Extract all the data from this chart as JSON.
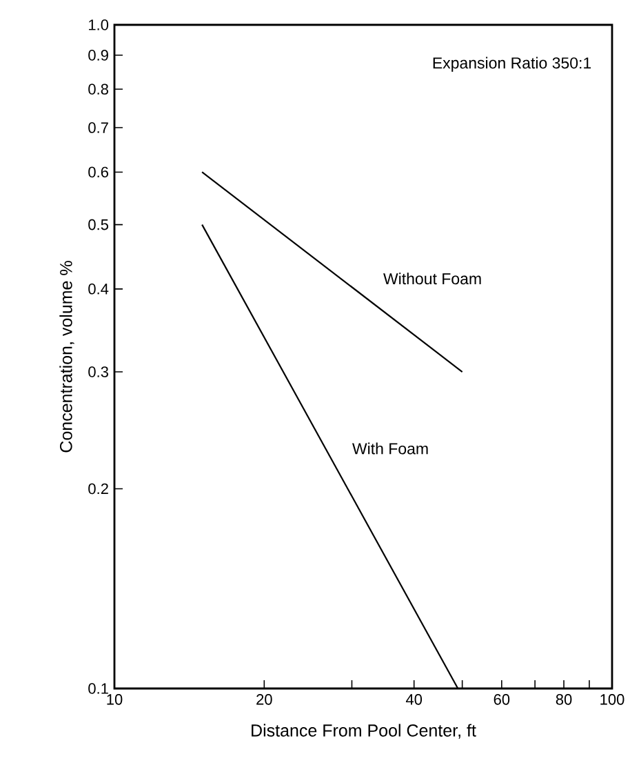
{
  "chart_data": {
    "type": "line",
    "xlabel": "Distance From Pool Center, ft",
    "ylabel": "Concentration, volume %",
    "annotations": [
      "Expansion Ratio 350:1"
    ],
    "log": "xy",
    "xlim": [
      10,
      100
    ],
    "ylim": [
      0.1,
      1
    ],
    "xticks": [
      10,
      20,
      {
        "value": 30,
        "label": null
      },
      40,
      {
        "value": 50,
        "label": null
      },
      60,
      {
        "value": 70,
        "label": null
      },
      80,
      {
        "value": 90,
        "label": null
      },
      100
    ],
    "yticks": [
      0.1,
      0.2,
      0.3,
      0.4,
      0.5,
      0.6,
      0.7,
      0.8,
      0.9,
      {
        "value": 1,
        "label": "1.0"
      }
    ],
    "series": [
      {
        "name": "Without Foam",
        "color": "#000000",
        "x": [
          15,
          50
        ],
        "values": [
          0.6,
          0.3
        ]
      },
      {
        "name": "With Foam",
        "color": "#000000",
        "x": [
          15,
          49
        ],
        "values": [
          0.5,
          0.1
        ]
      }
    ]
  }
}
